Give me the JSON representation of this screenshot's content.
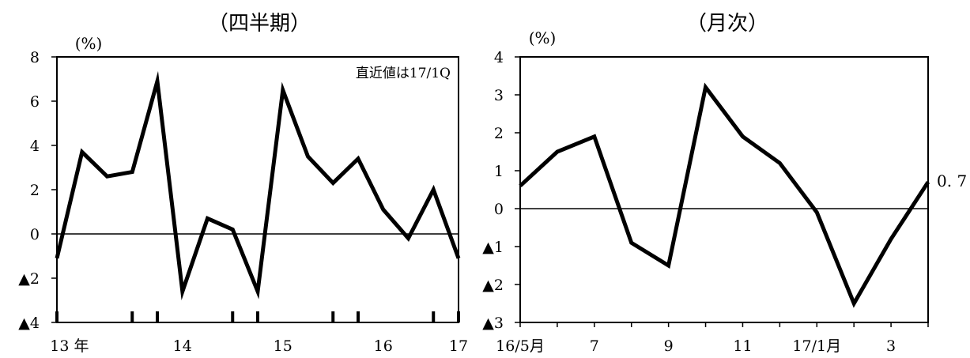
{
  "chart_data": [
    {
      "type": "line",
      "title": "（四半期）",
      "unit_label": "(%)",
      "annotation": "直近値は17/1Q",
      "ylim": [
        -4,
        8
      ],
      "y_ticks": [
        8,
        6,
        4,
        2,
        0,
        -2,
        -4
      ],
      "y_tick_labels": [
        "8",
        "6",
        "4",
        "2",
        "0",
        "▲2",
        "▲4"
      ],
      "x_tick_labels": [
        "13 年",
        "14",
        "15",
        "16",
        "17"
      ],
      "grid": false,
      "zero_line": true,
      "series": [
        {
          "values": [
            -1.1,
            3.7,
            2.6,
            2.8,
            6.9,
            -2.6,
            0.7,
            0.2,
            -2.6,
            6.5,
            3.5,
            2.3,
            3.4,
            1.1,
            -0.2,
            2.0,
            -1.1
          ]
        }
      ]
    },
    {
      "type": "line",
      "title": "（月次）",
      "unit_label": "(%)",
      "end_label": "0. 7",
      "ylim": [
        -3,
        4
      ],
      "y_ticks": [
        4,
        3,
        2,
        1,
        0,
        -1,
        -2,
        -3
      ],
      "y_tick_labels": [
        "4",
        "3",
        "2",
        "1",
        "0",
        "▲1",
        "▲2",
        "▲3"
      ],
      "x_tick_labels": [
        "16/5月",
        "7",
        "9",
        "11",
        "17/1月",
        "3"
      ],
      "grid": false,
      "zero_line": true,
      "series": [
        {
          "values": [
            0.6,
            1.5,
            1.9,
            -0.9,
            -1.5,
            3.2,
            1.9,
            1.2,
            -0.1,
            -2.5,
            -0.8,
            0.7
          ]
        }
      ]
    }
  ]
}
